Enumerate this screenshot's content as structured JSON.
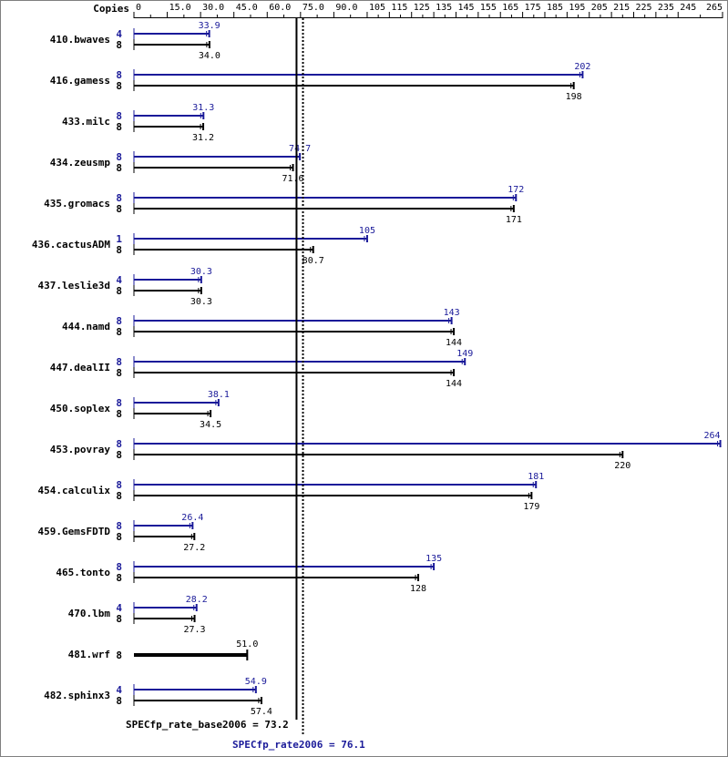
{
  "chart_data": {
    "type": "bar",
    "axis": {
      "header": "Copies",
      "min": 0,
      "max": 265,
      "ticks": [
        0,
        15.0,
        30.0,
        45.0,
        60.0,
        75.0,
        90.0,
        105,
        115,
        125,
        135,
        145,
        155,
        165,
        175,
        185,
        195,
        205,
        215,
        225,
        235,
        245,
        265
      ],
      "tick_labels": [
        "0",
        "15.0",
        "30.0",
        "45.0",
        "60.0",
        "75.0",
        "90.0",
        "105",
        "115",
        "125",
        "135",
        "145",
        "155",
        "165",
        "175",
        "185",
        "195",
        "205",
        "215",
        "225",
        "235",
        "245",
        "265"
      ]
    },
    "series": [
      {
        "name": "SPECfp_rate2006",
        "color": "#1a1a99"
      },
      {
        "name": "SPECfp_rate_base2006",
        "color": "#000000"
      }
    ],
    "benchmarks": [
      {
        "name": "410.bwaves",
        "peak_copies": "4",
        "peak": 33.9,
        "peak_label": "33.9",
        "base_copies": "8",
        "base": 34.0,
        "base_label": "34.0"
      },
      {
        "name": "416.gamess",
        "peak_copies": "8",
        "peak": 202,
        "peak_label": "202",
        "base_copies": "8",
        "base": 198,
        "base_label": "198"
      },
      {
        "name": "433.milc",
        "peak_copies": "8",
        "peak": 31.3,
        "peak_label": "31.3",
        "base_copies": "8",
        "base": 31.2,
        "base_label": "31.2"
      },
      {
        "name": "434.zeusmp",
        "peak_copies": "8",
        "peak": 74.7,
        "peak_label": "74.7",
        "base_copies": "8",
        "base": 71.6,
        "base_label": "71.6"
      },
      {
        "name": "435.gromacs",
        "peak_copies": "8",
        "peak": 172,
        "peak_label": "172",
        "base_copies": "8",
        "base": 171,
        "base_label": "171"
      },
      {
        "name": "436.cactusADM",
        "peak_copies": "1",
        "peak": 105,
        "peak_label": "105",
        "base_copies": "8",
        "base": 80.7,
        "base_label": "80.7"
      },
      {
        "name": "437.leslie3d",
        "peak_copies": "4",
        "peak": 30.3,
        "peak_label": "30.3",
        "base_copies": "8",
        "base": 30.3,
        "base_label": "30.3"
      },
      {
        "name": "444.namd",
        "peak_copies": "8",
        "peak": 143,
        "peak_label": "143",
        "base_copies": "8",
        "base": 144,
        "base_label": "144"
      },
      {
        "name": "447.dealII",
        "peak_copies": "8",
        "peak": 149,
        "peak_label": "149",
        "base_copies": "8",
        "base": 144,
        "base_label": "144"
      },
      {
        "name": "450.soplex",
        "peak_copies": "8",
        "peak": 38.1,
        "peak_label": "38.1",
        "base_copies": "8",
        "base": 34.5,
        "base_label": "34.5"
      },
      {
        "name": "453.povray",
        "peak_copies": "8",
        "peak": 264,
        "peak_label": "264",
        "base_copies": "8",
        "base": 220,
        "base_label": "220"
      },
      {
        "name": "454.calculix",
        "peak_copies": "8",
        "peak": 181,
        "peak_label": "181",
        "base_copies": "8",
        "base": 179,
        "base_label": "179"
      },
      {
        "name": "459.GemsFDTD",
        "peak_copies": "8",
        "peak": 26.4,
        "peak_label": "26.4",
        "base_copies": "8",
        "base": 27.2,
        "base_label": "27.2"
      },
      {
        "name": "465.tonto",
        "peak_copies": "8",
        "peak": 135,
        "peak_label": "135",
        "base_copies": "8",
        "base": 128,
        "base_label": "128"
      },
      {
        "name": "470.lbm",
        "peak_copies": "4",
        "peak": 28.2,
        "peak_label": "28.2",
        "base_copies": "8",
        "base": 27.3,
        "base_label": "27.3"
      },
      {
        "name": "481.wrf",
        "peak_copies": null,
        "peak": null,
        "peak_label": null,
        "base_copies": "8",
        "base": 51.0,
        "base_label": "51.0",
        "combined": true
      },
      {
        "name": "482.sphinx3",
        "peak_copies": "4",
        "peak": 54.9,
        "peak_label": "54.9",
        "base_copies": "8",
        "base": 57.4,
        "base_label": "57.4"
      }
    ],
    "reference_lines": [
      {
        "label": "SPECfp_rate_base2006 = 73.2",
        "value": 73.2,
        "style": "solid",
        "color": "#000000"
      },
      {
        "label": "SPECfp_rate2006 = 76.1",
        "value": 76.1,
        "style": "dotted",
        "color": "#1a1a99"
      }
    ]
  }
}
